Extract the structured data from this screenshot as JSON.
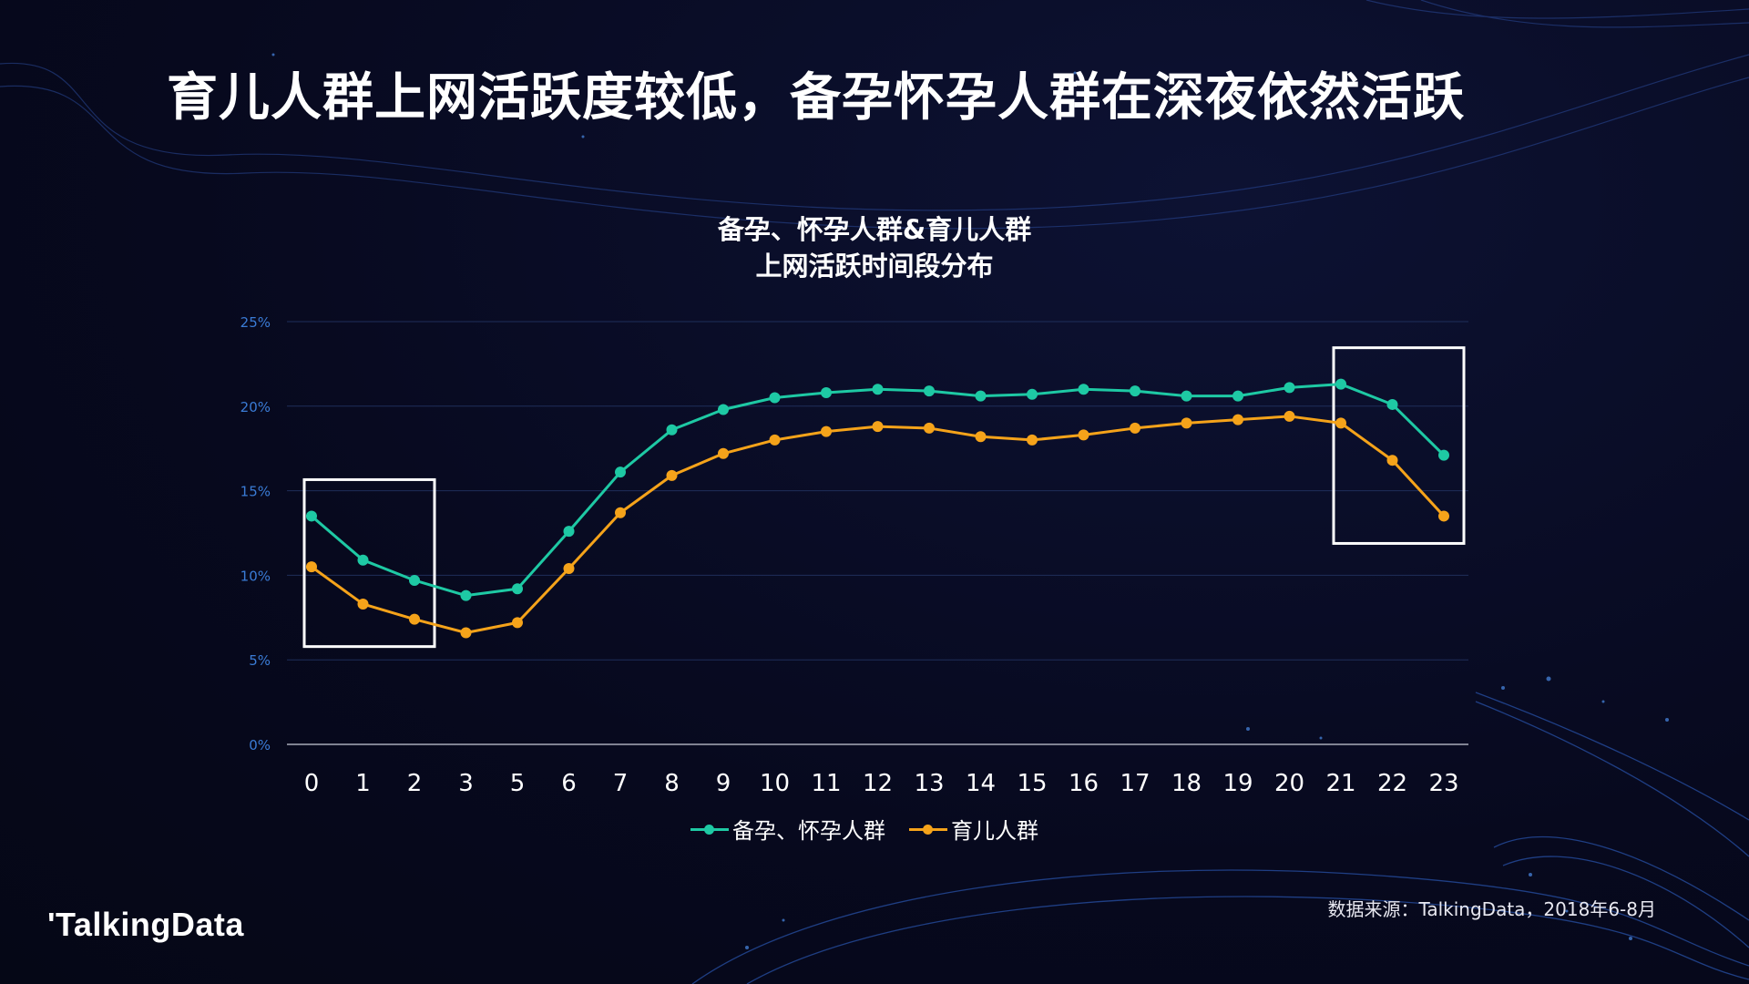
{
  "slide": {
    "headline": "育儿人群上网活跃度较低，备孕怀孕人群在深夜依然活跃",
    "logo_text": "'TalkingData",
    "source_note": "数据来源：TalkingData，2018年6-8月"
  },
  "colors": {
    "background": "#07091e",
    "series_pregnancy": "#1ec9a4",
    "series_parenting": "#f5a31a",
    "axis_tick": "#3a7bd5",
    "highlight_box": "#ffffff"
  },
  "chart_data": {
    "type": "line",
    "title_lines": [
      "备孕、怀孕人群&育儿人群",
      "上网活跃时间段分布"
    ],
    "x": [
      "0",
      "1",
      "2",
      "3",
      "5",
      "6",
      "7",
      "8",
      "9",
      "10",
      "11",
      "12",
      "13",
      "14",
      "15",
      "16",
      "17",
      "18",
      "19",
      "20",
      "21",
      "22",
      "23"
    ],
    "y_ticks": [
      "0%",
      "5%",
      "10%",
      "15%",
      "20%",
      "25%"
    ],
    "ylim": [
      0,
      25
    ],
    "grid": true,
    "legend_position": "bottom-center",
    "series": [
      {
        "name": "备孕、怀孕人群",
        "color": "#1ec9a4",
        "values": [
          13.5,
          10.9,
          9.7,
          8.8,
          9.2,
          12.6,
          16.1,
          18.6,
          19.8,
          20.5,
          20.8,
          21.0,
          20.9,
          20.6,
          20.7,
          21.0,
          20.9,
          20.6,
          20.6,
          21.1,
          21.3,
          20.1,
          17.1
        ]
      },
      {
        "name": "育儿人群",
        "color": "#f5a31a",
        "values": [
          10.5,
          8.3,
          7.4,
          6.6,
          7.2,
          10.4,
          13.7,
          15.9,
          17.2,
          18.0,
          18.5,
          18.8,
          18.7,
          18.2,
          18.0,
          18.3,
          18.7,
          19.0,
          19.2,
          19.4,
          19.0,
          16.8,
          13.5
        ]
      }
    ],
    "highlights": [
      {
        "x_from": "0",
        "x_to": "2",
        "note": "early morning hours"
      },
      {
        "x_from": "21",
        "x_to": "23",
        "note": "late night hours"
      }
    ]
  }
}
